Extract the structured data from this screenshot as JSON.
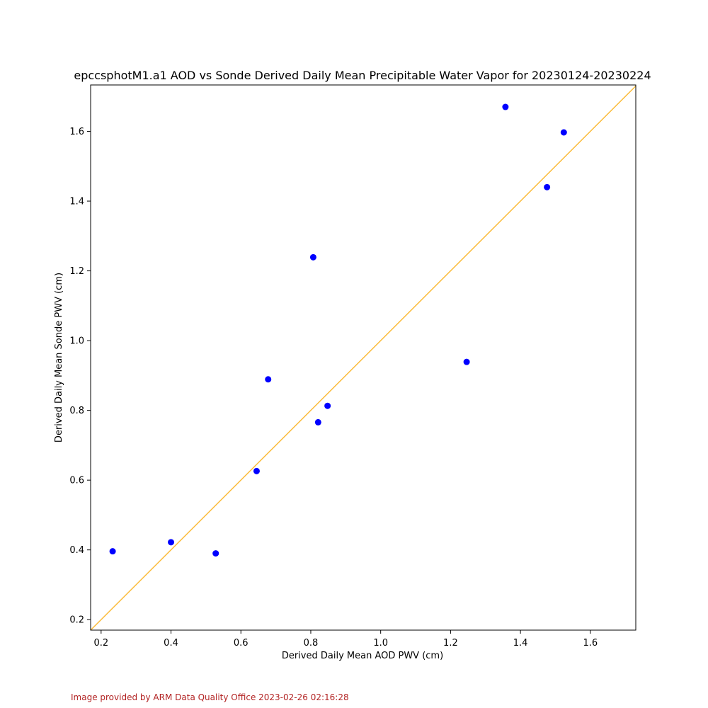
{
  "chart_data": {
    "type": "scatter",
    "title": "epccsphotM1.a1 AOD vs Sonde Derived Daily Mean Precipitable Water Vapor for 20230124-20230224",
    "xlabel": "Derived Daily Mean AOD PWV (cm)",
    "ylabel": "Derived Daily Mean Sonde PWV (cm)",
    "xlim": [
      0.17,
      1.73
    ],
    "ylim": [
      0.17,
      1.733
    ],
    "xticks": [
      0.2,
      0.4,
      0.6,
      0.8,
      1.0,
      1.2,
      1.4,
      1.6
    ],
    "xtick_labels": [
      "0.2",
      "0.4",
      "0.6",
      "0.8",
      "1.0",
      "1.2",
      "1.4",
      "1.6"
    ],
    "yticks": [
      0.2,
      0.4,
      0.6,
      0.8,
      1.0,
      1.2,
      1.4,
      1.6
    ],
    "ytick_labels": [
      "0.2",
      "0.4",
      "0.6",
      "0.8",
      "1.0",
      "1.2",
      "1.4",
      "1.6"
    ],
    "grid": false,
    "marker_color": "#0000ff",
    "reference_line": {
      "type": "one-to-one",
      "color": "#fbbc3c"
    },
    "points": [
      {
        "x": 0.233,
        "y": 0.396
      },
      {
        "x": 0.4,
        "y": 0.422
      },
      {
        "x": 0.528,
        "y": 0.39
      },
      {
        "x": 0.645,
        "y": 0.626
      },
      {
        "x": 0.678,
        "y": 0.889
      },
      {
        "x": 0.807,
        "y": 1.239
      },
      {
        "x": 0.821,
        "y": 0.766
      },
      {
        "x": 0.848,
        "y": 0.813
      },
      {
        "x": 1.246,
        "y": 0.939
      },
      {
        "x": 1.357,
        "y": 1.67
      },
      {
        "x": 1.476,
        "y": 1.44
      },
      {
        "x": 1.524,
        "y": 1.597
      }
    ]
  },
  "footer": {
    "credit": "Image provided by ARM Data Quality Office 2023-02-26 02:16:28"
  }
}
